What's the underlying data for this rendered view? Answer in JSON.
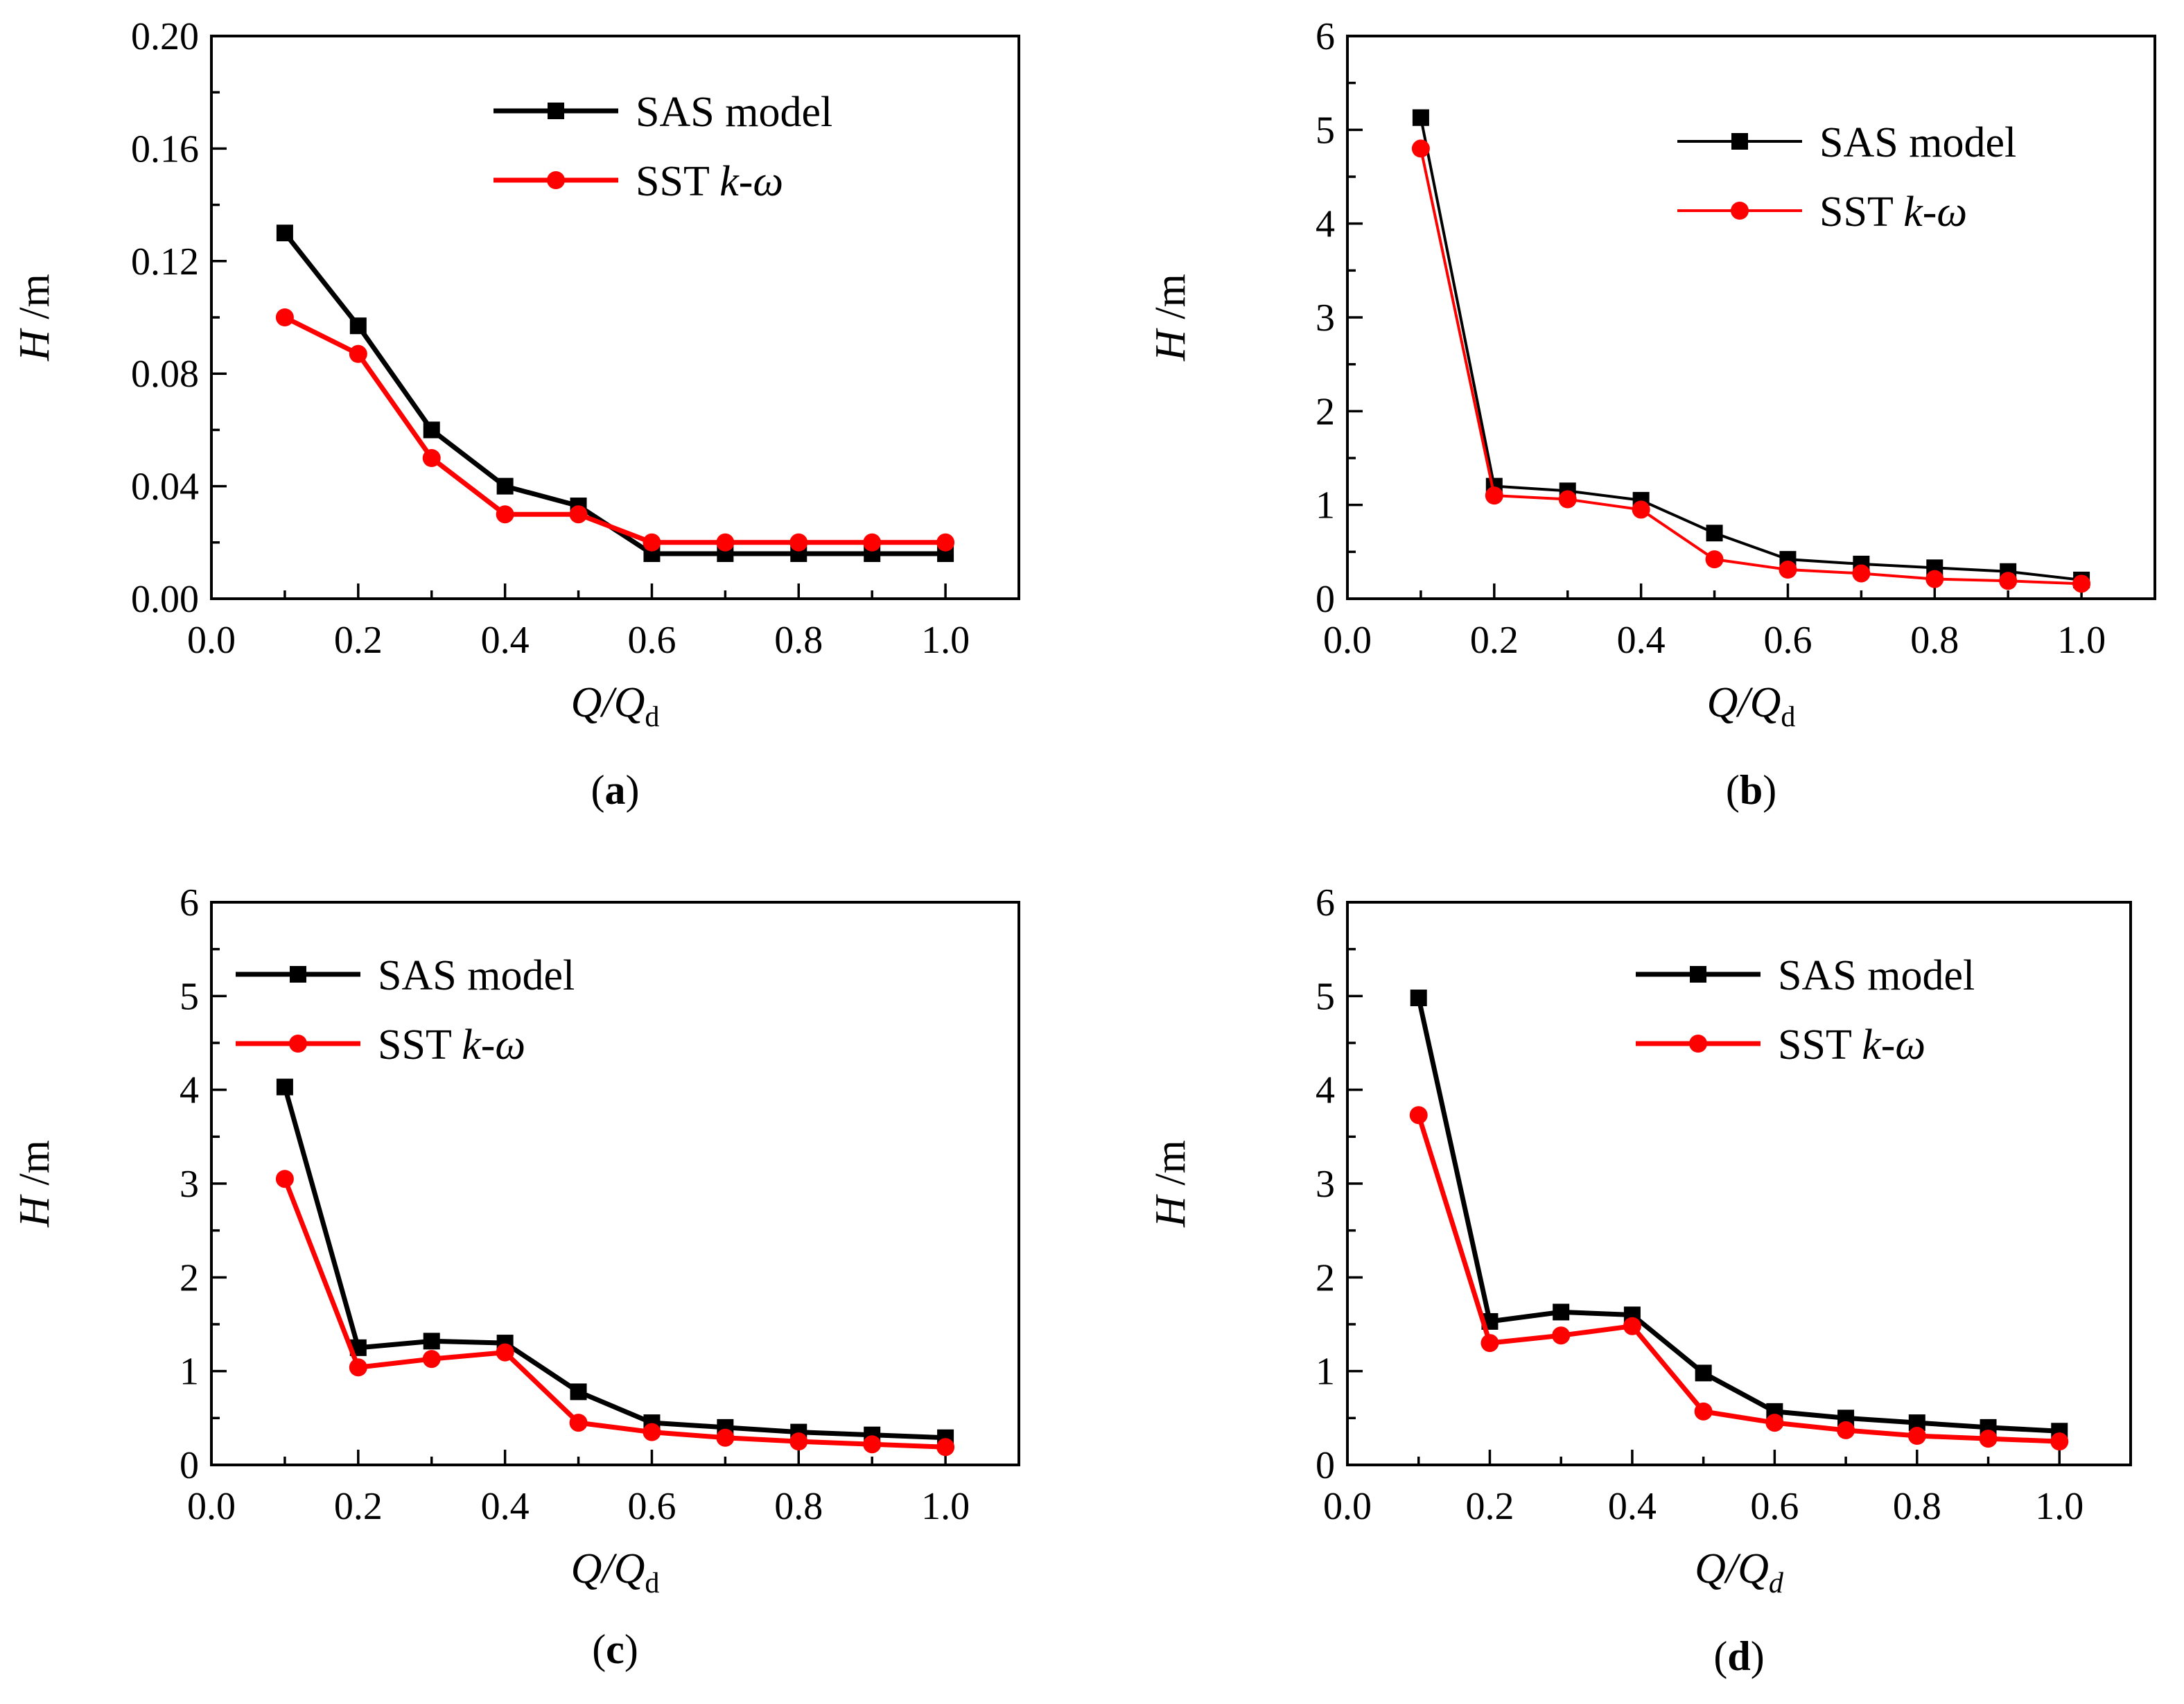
{
  "chart_data": [
    {
      "type": "line",
      "panel_label": "a",
      "xlabel": {
        "main": "Q/Q",
        "sub": "d",
        "sub_italic": false
      },
      "ylabel": {
        "main": "H",
        "unit": " /m"
      },
      "xlim": [
        0,
        1.1
      ],
      "ylim": [
        0,
        0.2
      ],
      "xticks": [
        "0.0",
        "0.2",
        "0.4",
        "0.6",
        "0.8",
        "1.0"
      ],
      "yticks": [
        "0.00",
        "0.04",
        "0.08",
        "0.12",
        "0.16",
        "0.20"
      ],
      "legend_position": "top-right",
      "x": [
        0.1,
        0.2,
        0.3,
        0.4,
        0.5,
        0.6,
        0.7,
        0.8,
        0.9,
        1.0
      ],
      "series": [
        {
          "name": "SAS model",
          "name_main": "SAS model",
          "name_italic": "",
          "color": "#000000",
          "marker": "square",
          "values": [
            0.13,
            0.097,
            0.06,
            0.04,
            0.033,
            0.016,
            0.016,
            0.016,
            0.016,
            0.016
          ]
        },
        {
          "name": "SST k-ω",
          "name_main": "SST ",
          "name_italic": "k-ω",
          "color": "#ff0000",
          "marker": "circle",
          "values": [
            0.1,
            0.087,
            0.05,
            0.03,
            0.03,
            0.02,
            0.02,
            0.02,
            0.02,
            0.02
          ]
        }
      ]
    },
    {
      "type": "line",
      "panel_label": "b",
      "xlabel": {
        "main": "Q/Q",
        "sub": "d",
        "sub_italic": false
      },
      "ylabel": {
        "main": "H",
        "unit": " /m"
      },
      "xlim": [
        0,
        1.1
      ],
      "ylim": [
        0,
        6
      ],
      "xticks": [
        "0.0",
        "0.2",
        "0.4",
        "0.6",
        "0.8",
        "1.0"
      ],
      "yticks": [
        "0",
        "1",
        "2",
        "3",
        "4",
        "5",
        "6"
      ],
      "legend_position": "top-right",
      "x": [
        0.1,
        0.2,
        0.3,
        0.4,
        0.5,
        0.6,
        0.7,
        0.8,
        0.9,
        1.0
      ],
      "series": [
        {
          "name": "SAS model",
          "name_main": "SAS model",
          "name_italic": "",
          "color": "#000000",
          "marker": "square",
          "values": [
            5.13,
            1.2,
            1.15,
            1.05,
            0.7,
            0.42,
            0.37,
            0.33,
            0.29,
            0.2
          ]
        },
        {
          "name": "SST k-ω",
          "name_main": "SST ",
          "name_italic": "k-ω",
          "color": "#ff0000",
          "marker": "circle",
          "values": [
            4.8,
            1.1,
            1.06,
            0.95,
            0.42,
            0.31,
            0.27,
            0.21,
            0.19,
            0.16
          ]
        }
      ]
    },
    {
      "type": "line",
      "panel_label": "c",
      "xlabel": {
        "main": "Q/Q",
        "sub": "d",
        "sub_italic": false
      },
      "ylabel": {
        "main": "H",
        "unit": " /m"
      },
      "xlim": [
        0,
        1.1
      ],
      "ylim": [
        0,
        6
      ],
      "xticks": [
        "0.0",
        "0.2",
        "0.4",
        "0.6",
        "0.8",
        "1.0"
      ],
      "yticks": [
        "0",
        "1",
        "2",
        "3",
        "4",
        "5",
        "6"
      ],
      "legend_position": "top-left",
      "x": [
        0.1,
        0.2,
        0.3,
        0.4,
        0.5,
        0.6,
        0.7,
        0.8,
        0.9,
        1.0
      ],
      "series": [
        {
          "name": "SAS model",
          "name_main": "SAS model",
          "name_italic": "",
          "color": "#000000",
          "marker": "square",
          "values": [
            4.03,
            1.25,
            1.32,
            1.3,
            0.78,
            0.45,
            0.4,
            0.35,
            0.32,
            0.29
          ]
        },
        {
          "name": "SST k-ω",
          "name_main": "SST ",
          "name_italic": "k-ω",
          "color": "#ff0000",
          "marker": "circle",
          "values": [
            3.05,
            1.04,
            1.13,
            1.2,
            0.45,
            0.35,
            0.29,
            0.25,
            0.22,
            0.19
          ]
        }
      ]
    },
    {
      "type": "line",
      "panel_label": "d",
      "xlabel": {
        "main": "Q/Q",
        "sub": "d",
        "sub_italic": true
      },
      "ylabel": {
        "main": "H",
        "unit": " /m"
      },
      "xlim": [
        0,
        1.1
      ],
      "ylim": [
        0,
        6
      ],
      "xticks": [
        "0.0",
        "0.2",
        "0.4",
        "0.6",
        "0.8",
        "1.0"
      ],
      "yticks": [
        "0",
        "1",
        "2",
        "3",
        "4",
        "5",
        "6"
      ],
      "legend_position": "top-right",
      "x": [
        0.1,
        0.2,
        0.3,
        0.4,
        0.5,
        0.6,
        0.7,
        0.8,
        0.9,
        1.0
      ],
      "series": [
        {
          "name": "SAS model",
          "name_main": "SAS model",
          "name_italic": "",
          "color": "#000000",
          "marker": "square",
          "values": [
            4.98,
            1.53,
            1.63,
            1.6,
            0.98,
            0.57,
            0.5,
            0.45,
            0.4,
            0.36
          ]
        },
        {
          "name": "SST k-ω",
          "name_main": "SST ",
          "name_italic": "k-ω",
          "color": "#ff0000",
          "marker": "circle",
          "values": [
            3.73,
            1.3,
            1.38,
            1.48,
            0.57,
            0.45,
            0.37,
            0.31,
            0.28,
            0.25
          ]
        }
      ]
    }
  ]
}
